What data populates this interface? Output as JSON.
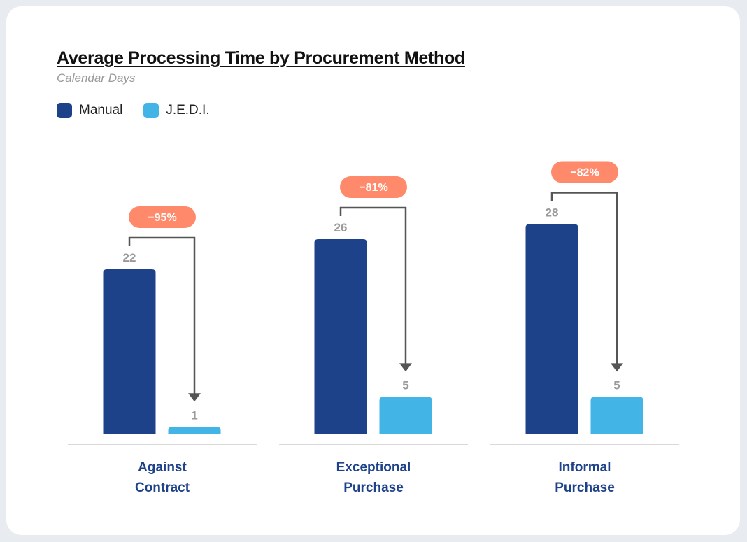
{
  "chart_data": {
    "type": "bar",
    "title": "Average Processing Time by Procurement Method",
    "subtitle": "Calendar Days",
    "categories": [
      [
        "Against",
        "Contract"
      ],
      [
        "Exceptional",
        "Purchase"
      ],
      [
        "Informal",
        "Purchase"
      ]
    ],
    "series": [
      {
        "name": "Manual",
        "values": [
          22,
          26,
          28
        ],
        "color": "#1e428a"
      },
      {
        "name": "J.E.D.I.",
        "values": [
          1,
          5,
          5
        ],
        "color": "#42b4e6"
      }
    ],
    "changes": [
      "−95%",
      "−81%",
      "−82%"
    ],
    "badge_color": "#ff8a6b",
    "legend": "top-left",
    "grid": false
  }
}
